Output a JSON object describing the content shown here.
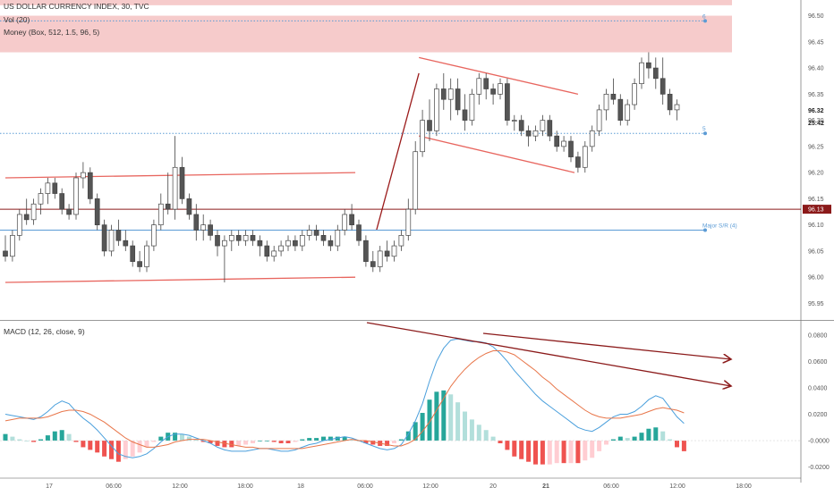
{
  "header": {
    "symbol_line": "US DOLLAR CURRENCY INDEX, 30, TVC",
    "volume_line": "Vol (20)",
    "money_line": "Money (Box, 512, 1.5, 96, 5)",
    "macd_line": "MACD (12, 26, close, 9)"
  },
  "chart_data": [
    {
      "type": "candlestick",
      "title": "US DOLLAR CURRENCY INDEX, 30, TVC",
      "ylim": [
        95.92,
        96.53
      ],
      "y_ticks": [
        "96.50",
        "96.45",
        "96.40",
        "96.35",
        "96.30",
        "96.25",
        "96.20",
        "96.15",
        "96.10",
        "96.05",
        "96.00",
        "95.95"
      ],
      "x_ticks": [
        "17",
        "06:00",
        "12:00",
        "18:00",
        "18",
        "06:00",
        "12:00",
        "20",
        "21",
        "06:00",
        "12:00",
        "18:00"
      ],
      "price_labels": {
        "last_price": "96.32",
        "countdown": "25:42",
        "reference": "96.13",
        "reference_value": 96.13
      },
      "horizontal_lines": [
        {
          "label": "Major S/R (4)",
          "value": 96.09,
          "color": "#5b9bd5"
        },
        {
          "label": "5",
          "value": 96.275,
          "color": "#5b9bd5",
          "style": "dotted"
        },
        {
          "label": "6",
          "value": 96.49,
          "color": "#5b9bd5",
          "style": "dotted"
        },
        {
          "label": "",
          "value": 96.13,
          "color": "#8b1a1a"
        }
      ],
      "zones": [
        {
          "from": 96.43,
          "to": 96.5,
          "color": "#f0a8a8"
        },
        {
          "from": 96.52,
          "to": 96.53,
          "color": "#f0a8a8"
        }
      ],
      "colors": {
        "up": "#ffffff",
        "down": "#555555",
        "wick": "#444444"
      },
      "candles": [
        [
          96.05,
          96.08,
          96.03,
          96.04
        ],
        [
          96.04,
          96.09,
          96.03,
          96.08
        ],
        [
          96.08,
          96.13,
          96.07,
          96.12
        ],
        [
          96.12,
          96.15,
          96.1,
          96.11
        ],
        [
          96.11,
          96.15,
          96.1,
          96.14
        ],
        [
          96.14,
          96.17,
          96.12,
          96.16
        ],
        [
          96.16,
          96.19,
          96.14,
          96.18
        ],
        [
          96.18,
          96.19,
          96.15,
          96.16
        ],
        [
          96.16,
          96.17,
          96.12,
          96.13
        ],
        [
          96.13,
          96.14,
          96.11,
          96.12
        ],
        [
          96.12,
          96.2,
          96.11,
          96.19
        ],
        [
          96.19,
          96.22,
          96.17,
          96.2
        ],
        [
          96.2,
          96.21,
          96.14,
          96.15
        ],
        [
          96.15,
          96.16,
          96.09,
          96.1
        ],
        [
          96.1,
          96.11,
          96.04,
          96.05
        ],
        [
          96.05,
          96.1,
          96.04,
          96.09
        ],
        [
          96.09,
          96.11,
          96.06,
          96.07
        ],
        [
          96.07,
          96.09,
          96.05,
          96.06
        ],
        [
          96.06,
          96.07,
          96.02,
          96.03
        ],
        [
          96.03,
          96.05,
          96.01,
          96.02
        ],
        [
          96.02,
          96.07,
          96.01,
          96.06
        ],
        [
          96.06,
          96.11,
          96.05,
          96.1
        ],
        [
          96.1,
          96.16,
          96.09,
          96.14
        ],
        [
          96.14,
          96.2,
          96.12,
          96.13
        ],
        [
          96.13,
          96.27,
          96.11,
          96.21
        ],
        [
          96.21,
          96.23,
          96.14,
          96.15
        ],
        [
          96.15,
          96.16,
          96.11,
          96.12
        ],
        [
          96.12,
          96.14,
          96.07,
          96.09
        ],
        [
          96.09,
          96.12,
          96.07,
          96.1
        ],
        [
          96.1,
          96.11,
          96.07,
          96.08
        ],
        [
          96.08,
          96.09,
          96.04,
          96.06
        ],
        [
          96.06,
          96.08,
          95.99,
          96.07
        ],
        [
          96.07,
          96.09,
          96.05,
          96.08
        ],
        [
          96.08,
          96.09,
          96.06,
          96.07
        ],
        [
          96.07,
          96.09,
          96.06,
          96.08
        ],
        [
          96.08,
          96.09,
          96.06,
          96.07
        ],
        [
          96.07,
          96.08,
          96.04,
          96.06
        ],
        [
          96.06,
          96.07,
          96.03,
          96.04
        ],
        [
          96.04,
          96.06,
          96.03,
          96.05
        ],
        [
          96.05,
          96.07,
          96.04,
          96.06
        ],
        [
          96.06,
          96.08,
          96.05,
          96.07
        ],
        [
          96.07,
          96.08,
          96.05,
          96.06
        ],
        [
          96.06,
          96.09,
          96.05,
          96.08
        ],
        [
          96.08,
          96.1,
          96.07,
          96.09
        ],
        [
          96.09,
          96.1,
          96.07,
          96.08
        ],
        [
          96.08,
          96.09,
          96.06,
          96.07
        ],
        [
          96.07,
          96.08,
          96.05,
          96.06
        ],
        [
          96.06,
          96.1,
          96.05,
          96.09
        ],
        [
          96.09,
          96.13,
          96.08,
          96.12
        ],
        [
          96.12,
          96.14,
          96.09,
          96.1
        ],
        [
          96.1,
          96.11,
          96.06,
          96.07
        ],
        [
          96.07,
          96.08,
          96.02,
          96.03
        ],
        [
          96.03,
          96.05,
          96.01,
          96.02
        ],
        [
          96.02,
          96.06,
          96.01,
          96.05
        ],
        [
          96.05,
          96.07,
          96.03,
          96.04
        ],
        [
          96.04,
          96.07,
          96.03,
          96.06
        ],
        [
          96.06,
          96.09,
          96.05,
          96.08
        ],
        [
          96.08,
          96.15,
          96.07,
          96.13
        ],
        [
          96.13,
          96.26,
          96.12,
          96.24
        ],
        [
          96.24,
          96.32,
          96.23,
          96.3
        ],
        [
          96.3,
          96.34,
          96.26,
          96.28
        ],
        [
          96.28,
          96.37,
          96.27,
          96.36
        ],
        [
          96.36,
          96.39,
          96.32,
          96.34
        ],
        [
          96.34,
          96.38,
          96.3,
          96.36
        ],
        [
          96.36,
          96.38,
          96.31,
          96.32
        ],
        [
          96.32,
          96.35,
          96.28,
          96.3
        ],
        [
          96.3,
          96.36,
          96.29,
          96.35
        ],
        [
          96.35,
          96.39,
          96.33,
          96.38
        ],
        [
          96.38,
          96.39,
          96.34,
          96.36
        ],
        [
          96.36,
          96.37,
          96.33,
          96.35
        ],
        [
          96.35,
          96.38,
          96.34,
          96.37
        ],
        [
          96.37,
          96.38,
          96.29,
          96.3
        ],
        [
          96.3,
          96.31,
          96.28,
          96.3
        ],
        [
          96.3,
          96.31,
          96.27,
          96.28
        ],
        [
          96.28,
          96.29,
          96.25,
          96.27
        ],
        [
          96.27,
          96.29,
          96.26,
          96.28
        ],
        [
          96.28,
          96.31,
          96.27,
          96.3
        ],
        [
          96.3,
          96.31,
          96.26,
          96.27
        ],
        [
          96.27,
          96.28,
          96.24,
          96.25
        ],
        [
          96.25,
          96.27,
          96.24,
          96.26
        ],
        [
          96.26,
          96.27,
          96.22,
          96.23
        ],
        [
          96.23,
          96.24,
          96.2,
          96.21
        ],
        [
          96.21,
          96.26,
          96.2,
          96.25
        ],
        [
          96.25,
          96.29,
          96.24,
          96.28
        ],
        [
          96.28,
          96.33,
          96.27,
          96.32
        ],
        [
          96.32,
          96.36,
          96.3,
          96.35
        ],
        [
          96.35,
          96.38,
          96.33,
          96.34
        ],
        [
          96.34,
          96.35,
          96.29,
          96.3
        ],
        [
          96.3,
          96.34,
          96.29,
          96.33
        ],
        [
          96.33,
          96.38,
          96.32,
          96.37
        ],
        [
          96.37,
          96.42,
          96.36,
          96.41
        ],
        [
          96.41,
          96.43,
          96.38,
          96.4
        ],
        [
          96.4,
          96.42,
          96.36,
          96.38
        ],
        [
          96.38,
          96.42,
          96.33,
          96.35
        ],
        [
          96.35,
          96.36,
          96.31,
          96.32
        ],
        [
          96.32,
          96.34,
          96.3,
          96.33
        ]
      ]
    },
    {
      "type": "line",
      "title": "MACD (12, 26, close, 9)",
      "ylim": [
        -0.025,
        0.09
      ],
      "y_ticks": [
        "0.0800",
        "0.0600",
        "0.0400",
        "0.0200",
        "-0.0000",
        "-0.0200"
      ],
      "series": [
        {
          "name": "MACD",
          "color": "#4a9fdc",
          "values": [
            0.02,
            0.019,
            0.018,
            0.017,
            0.016,
            0.018,
            0.022,
            0.027,
            0.03,
            0.028,
            0.022,
            0.017,
            0.013,
            0.008,
            0.002,
            -0.004,
            -0.01,
            -0.012,
            -0.013,
            -0.012,
            -0.01,
            -0.006,
            -0.001,
            0.003,
            0.005,
            0.005,
            0.004,
            0.002,
            0.0,
            -0.002,
            -0.005,
            -0.007,
            -0.008,
            -0.008,
            -0.008,
            -0.007,
            -0.006,
            -0.006,
            -0.007,
            -0.008,
            -0.008,
            -0.007,
            -0.005,
            -0.003,
            -0.002,
            0.0,
            0.001,
            0.002,
            0.003,
            0.002,
            0.0,
            -0.002,
            -0.004,
            -0.006,
            -0.007,
            -0.006,
            -0.003,
            0.005,
            0.015,
            0.028,
            0.045,
            0.06,
            0.07,
            0.076,
            0.077,
            0.076,
            0.075,
            0.075,
            0.074,
            0.071,
            0.066,
            0.06,
            0.053,
            0.047,
            0.041,
            0.035,
            0.03,
            0.026,
            0.022,
            0.018,
            0.014,
            0.01,
            0.008,
            0.007,
            0.01,
            0.014,
            0.018,
            0.02,
            0.02,
            0.022,
            0.026,
            0.031,
            0.034,
            0.032,
            0.025,
            0.018,
            0.013
          ]
        },
        {
          "name": "Signal",
          "color": "#e8764a",
          "values": [
            0.015,
            0.016,
            0.017,
            0.017,
            0.017,
            0.017,
            0.018,
            0.02,
            0.022,
            0.023,
            0.023,
            0.022,
            0.02,
            0.017,
            0.014,
            0.01,
            0.006,
            0.002,
            -0.001,
            -0.003,
            -0.005,
            -0.005,
            -0.004,
            -0.003,
            -0.001,
            0.0,
            0.001,
            0.001,
            0.001,
            0.0,
            -0.001,
            -0.002,
            -0.003,
            -0.004,
            -0.005,
            -0.005,
            -0.006,
            -0.006,
            -0.006,
            -0.006,
            -0.006,
            -0.006,
            -0.006,
            -0.005,
            -0.004,
            -0.003,
            -0.002,
            -0.001,
            0.0,
            0.001,
            0.0,
            0.0,
            -0.001,
            -0.002,
            -0.003,
            -0.004,
            -0.004,
            -0.002,
            0.001,
            0.007,
            0.014,
            0.023,
            0.032,
            0.041,
            0.048,
            0.054,
            0.059,
            0.063,
            0.066,
            0.068,
            0.068,
            0.067,
            0.065,
            0.061,
            0.057,
            0.053,
            0.048,
            0.044,
            0.039,
            0.035,
            0.031,
            0.027,
            0.023,
            0.02,
            0.018,
            0.017,
            0.017,
            0.017,
            0.018,
            0.019,
            0.02,
            0.022,
            0.024,
            0.025,
            0.024,
            0.023,
            0.021
          ]
        }
      ],
      "histogram_colors": {
        "pos_strong": "#26a69a",
        "pos_weak": "#b2dfdb",
        "neg_strong": "#ef5350",
        "neg_weak": "#ffcdd2"
      }
    }
  ]
}
